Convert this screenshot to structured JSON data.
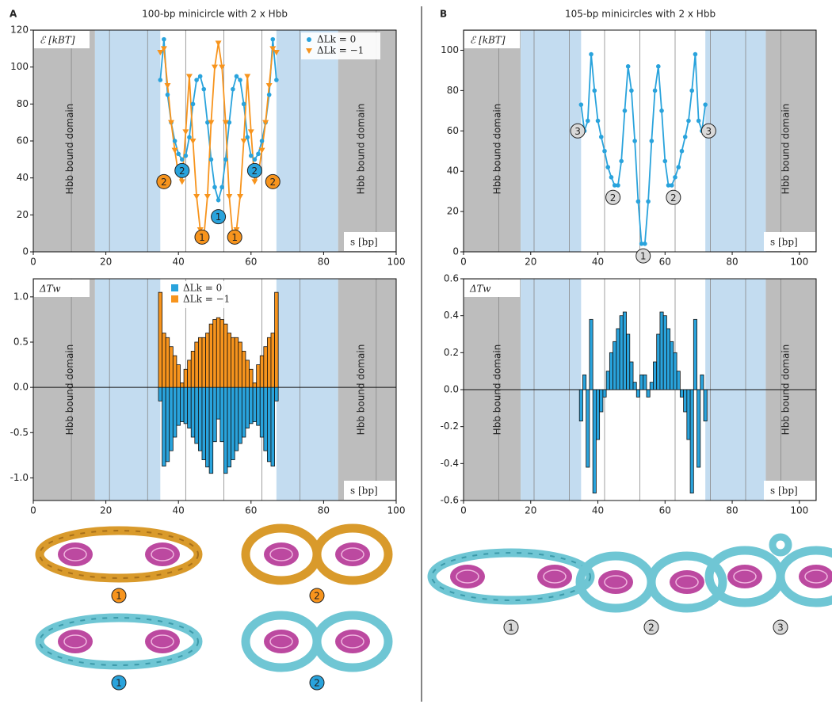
{
  "panels": [
    {
      "label": "A",
      "title": "100-bp minicircle with 2 x Hbb"
    },
    {
      "label": "B",
      "title": "105-bp minicircles with 2 x Hbb"
    }
  ],
  "chart_data": [
    {
      "type": "line",
      "ylabel": "ℰ [kBT]",
      "xlabel": "s [bp]",
      "xlim": [
        0,
        100
      ],
      "xticks": [
        0,
        20,
        40,
        60,
        80,
        100
      ],
      "ylim": [
        0,
        120
      ],
      "yticks": [
        0,
        20,
        40,
        60,
        80,
        100,
        120
      ],
      "shaded_regions": [
        {
          "from": 0,
          "to": 17,
          "color": "#bdbdbd"
        },
        {
          "from": 17,
          "to": 35,
          "color": "#c3dcf0"
        },
        {
          "from": 67,
          "to": 84,
          "color": "#c3dcf0"
        },
        {
          "from": 84,
          "to": 100,
          "color": "#bdbdbd"
        }
      ],
      "vlines": [
        10.5,
        21,
        31.5,
        42,
        52.5,
        63,
        73.5,
        94.5
      ],
      "legend": "upper right",
      "annotations": [
        "Hbb bound domain",
        "Hbb bound domain"
      ],
      "circle_labels": [
        {
          "text": "2",
          "color": "#f7941d"
        },
        {
          "text": "2",
          "color": "#29a3dc"
        },
        {
          "text": "1",
          "color": "#f7941d"
        },
        {
          "text": "1",
          "color": "#29a3dc"
        },
        {
          "text": "1",
          "color": "#f7941d"
        },
        {
          "text": "2",
          "color": "#29a3dc"
        },
        {
          "text": "2",
          "color": "#f7941d"
        }
      ],
      "x": [
        35,
        36,
        37,
        38,
        39,
        40,
        41,
        42,
        43,
        44,
        45,
        46,
        47,
        48,
        49,
        50,
        51,
        52,
        53,
        54,
        55,
        56,
        57,
        58,
        59,
        60,
        61,
        62,
        63,
        64,
        65,
        66,
        67
      ],
      "series": [
        {
          "name": "ΔLk = 0",
          "color": "#29a3dc",
          "marker": "circle",
          "values": [
            93,
            115,
            85,
            70,
            60,
            53,
            50,
            52,
            62,
            80,
            93,
            95,
            88,
            70,
            50,
            35,
            28,
            35,
            50,
            70,
            88,
            95,
            93,
            80,
            62,
            52,
            50,
            53,
            60,
            70,
            85,
            115,
            93
          ]
        },
        {
          "name": "ΔLk = −1",
          "color": "#f7941d",
          "marker": "triangle-down",
          "values": [
            108,
            110,
            90,
            70,
            55,
            42,
            38,
            65,
            95,
            60,
            30,
            12,
            8,
            30,
            70,
            100,
            113,
            100,
            70,
            30,
            8,
            12,
            30,
            60,
            95,
            65,
            38,
            42,
            55,
            70,
            90,
            110,
            108
          ]
        }
      ]
    },
    {
      "type": "bar",
      "ylabel": "ΔTw",
      "xlabel": "s [bp]",
      "xlim": [
        0,
        100
      ],
      "xticks": [
        0,
        20,
        40,
        60,
        80,
        100
      ],
      "ylim": [
        -1.25,
        1.2
      ],
      "yticks": [
        {
          "value": -1,
          "label": "-1.0"
        },
        -0.5,
        {
          "value": 0,
          "label": "0.0"
        },
        0.5,
        {
          "value": 1,
          "label": "1.0"
        }
      ],
      "shaded_regions": [
        {
          "from": 0,
          "to": 17,
          "color": "#bdbdbd"
        },
        {
          "from": 17,
          "to": 35,
          "color": "#c3dcf0"
        },
        {
          "from": 67,
          "to": 84,
          "color": "#c3dcf0"
        },
        {
          "from": 84,
          "to": 100,
          "color": "#bdbdbd"
        }
      ],
      "vlines": [
        10.5,
        21,
        31.5,
        42,
        52.5,
        63,
        73.5,
        94.5
      ],
      "legend": "upper center",
      "annotations": [
        "Hbb  bound domain",
        "Hbb  bound domain"
      ],
      "x": [
        35,
        36,
        37,
        38,
        39,
        40,
        41,
        42,
        43,
        44,
        45,
        46,
        47,
        48,
        49,
        50,
        51,
        52,
        53,
        54,
        55,
        56,
        57,
        58,
        59,
        60,
        61,
        62,
        63,
        64,
        65,
        66,
        67
      ],
      "series": [
        {
          "name": "ΔLk = 0",
          "color": "#29a3dc",
          "values": [
            -0.15,
            -0.87,
            -0.82,
            -0.7,
            -0.55,
            -0.42,
            -0.38,
            -0.4,
            -0.45,
            -0.55,
            -0.62,
            -0.7,
            -0.8,
            -0.88,
            -0.95,
            -0.6,
            -0.35,
            -0.6,
            -0.95,
            -0.88,
            -0.8,
            -0.7,
            -0.62,
            -0.55,
            -0.45,
            -0.4,
            -0.38,
            -0.42,
            -0.55,
            -0.7,
            -0.82,
            -0.87,
            -0.15
          ]
        },
        {
          "name": "ΔLk = −1",
          "color": "#f7941d",
          "values": [
            1.05,
            0.6,
            0.55,
            0.45,
            0.35,
            0.25,
            0.05,
            0.2,
            0.3,
            0.4,
            0.5,
            0.55,
            0.55,
            0.6,
            0.7,
            0.75,
            0.77,
            0.75,
            0.7,
            0.6,
            0.55,
            0.55,
            0.5,
            0.4,
            0.3,
            0.2,
            0.05,
            0.25,
            0.35,
            0.45,
            0.55,
            0.6,
            1.05
          ]
        }
      ]
    },
    {
      "type": "line",
      "ylabel": "ℰ [kBT]",
      "xlabel": "s [bp]",
      "xlim": [
        0,
        105
      ],
      "xticks": [
        0,
        20,
        40,
        60,
        80,
        100
      ],
      "ylim": [
        0,
        110
      ],
      "yticks": [
        0,
        20,
        40,
        60,
        80,
        100
      ],
      "shaded_regions": [
        {
          "from": 0,
          "to": 17,
          "color": "#bdbdbd"
        },
        {
          "from": 17,
          "to": 35,
          "color": "#c3dcf0"
        },
        {
          "from": 72,
          "to": 90,
          "color": "#c3dcf0"
        },
        {
          "from": 90,
          "to": 105,
          "color": "#bdbdbd"
        }
      ],
      "vlines": [
        10.5,
        21,
        31.5,
        42,
        52.5,
        63,
        73.5,
        84,
        94.5
      ],
      "annotations": [
        "Hbb  bound domain",
        "Hbb  bound domain"
      ],
      "circle_labels": [
        {
          "text": "3",
          "color": "#d9d9d9"
        },
        {
          "text": "2",
          "color": "#d9d9d9"
        },
        {
          "text": "1",
          "color": "#d9d9d9"
        },
        {
          "text": "2",
          "color": "#d9d9d9"
        },
        {
          "text": "3",
          "color": "#d9d9d9"
        }
      ],
      "x": [
        35,
        36,
        37,
        38,
        39,
        40,
        41,
        42,
        43,
        44,
        45,
        46,
        47,
        48,
        49,
        50,
        51,
        52,
        53,
        54,
        55,
        56,
        57,
        58,
        59,
        60,
        61,
        62,
        63,
        64,
        65,
        66,
        67,
        68,
        69,
        70,
        71,
        72
      ],
      "series": [
        {
          "color": "#29a3dc",
          "marker": "circle",
          "values": [
            73,
            60,
            65,
            98,
            80,
            65,
            57,
            50,
            42,
            37,
            33,
            33,
            45,
            70,
            92,
            80,
            55,
            25,
            4,
            4,
            25,
            55,
            80,
            92,
            70,
            45,
            33,
            33,
            37,
            42,
            50,
            57,
            65,
            80,
            98,
            65,
            60,
            73
          ]
        }
      ]
    },
    {
      "type": "bar",
      "ylabel": "ΔTw",
      "xlabel": "s [bp]",
      "xlim": [
        0,
        105
      ],
      "xticks": [
        0,
        20,
        40,
        60,
        80,
        100
      ],
      "ylim": [
        -0.6,
        0.6
      ],
      "yticks": [
        -0.6,
        -0.4,
        -0.2,
        {
          "value": 0,
          "label": "0.0"
        },
        0.2,
        0.4,
        0.6
      ],
      "shaded_regions": [
        {
          "from": 0,
          "to": 17,
          "color": "#bdbdbd"
        },
        {
          "from": 17,
          "to": 35,
          "color": "#c3dcf0"
        },
        {
          "from": 72,
          "to": 90,
          "color": "#c3dcf0"
        },
        {
          "from": 90,
          "to": 105,
          "color": "#bdbdbd"
        }
      ],
      "vlines": [
        10.5,
        21,
        31.5,
        42,
        52.5,
        63,
        73.5,
        84,
        94.5
      ],
      "annotations": [
        "Hbb  bound domain",
        "Hbb  bound domain"
      ],
      "x": [
        35,
        36,
        37,
        38,
        39,
        40,
        41,
        42,
        43,
        44,
        45,
        46,
        47,
        48,
        49,
        50,
        51,
        52,
        53,
        54,
        55,
        56,
        57,
        58,
        59,
        60,
        61,
        62,
        63,
        64,
        65,
        66,
        67,
        68,
        69,
        70,
        71,
        72
      ],
      "series": [
        {
          "color": "#29a3dc",
          "values": [
            -0.17,
            0.08,
            -0.42,
            0.38,
            -0.56,
            -0.27,
            -0.12,
            -0.04,
            0.1,
            0.2,
            0.26,
            0.33,
            0.4,
            0.42,
            0.3,
            0.15,
            0.04,
            -0.04,
            0.08,
            0.08,
            -0.04,
            0.04,
            0.15,
            0.3,
            0.42,
            0.4,
            0.33,
            0.26,
            0.2,
            0.1,
            -0.04,
            -0.12,
            -0.27,
            -0.56,
            0.38,
            -0.42,
            0.08,
            -0.17
          ]
        }
      ]
    }
  ],
  "structures": [
    {
      "label": "1",
      "color": "#f7941d"
    },
    {
      "label": "2",
      "color": "#f7941d"
    },
    {
      "label": "1",
      "color": "#29a3dc"
    },
    {
      "label": "2",
      "color": "#29a3dc"
    },
    {
      "label": "1",
      "color": "#d9d9d9"
    },
    {
      "label": "2",
      "color": "#d9d9d9"
    },
    {
      "label": "3",
      "color": "#d9d9d9"
    }
  ]
}
